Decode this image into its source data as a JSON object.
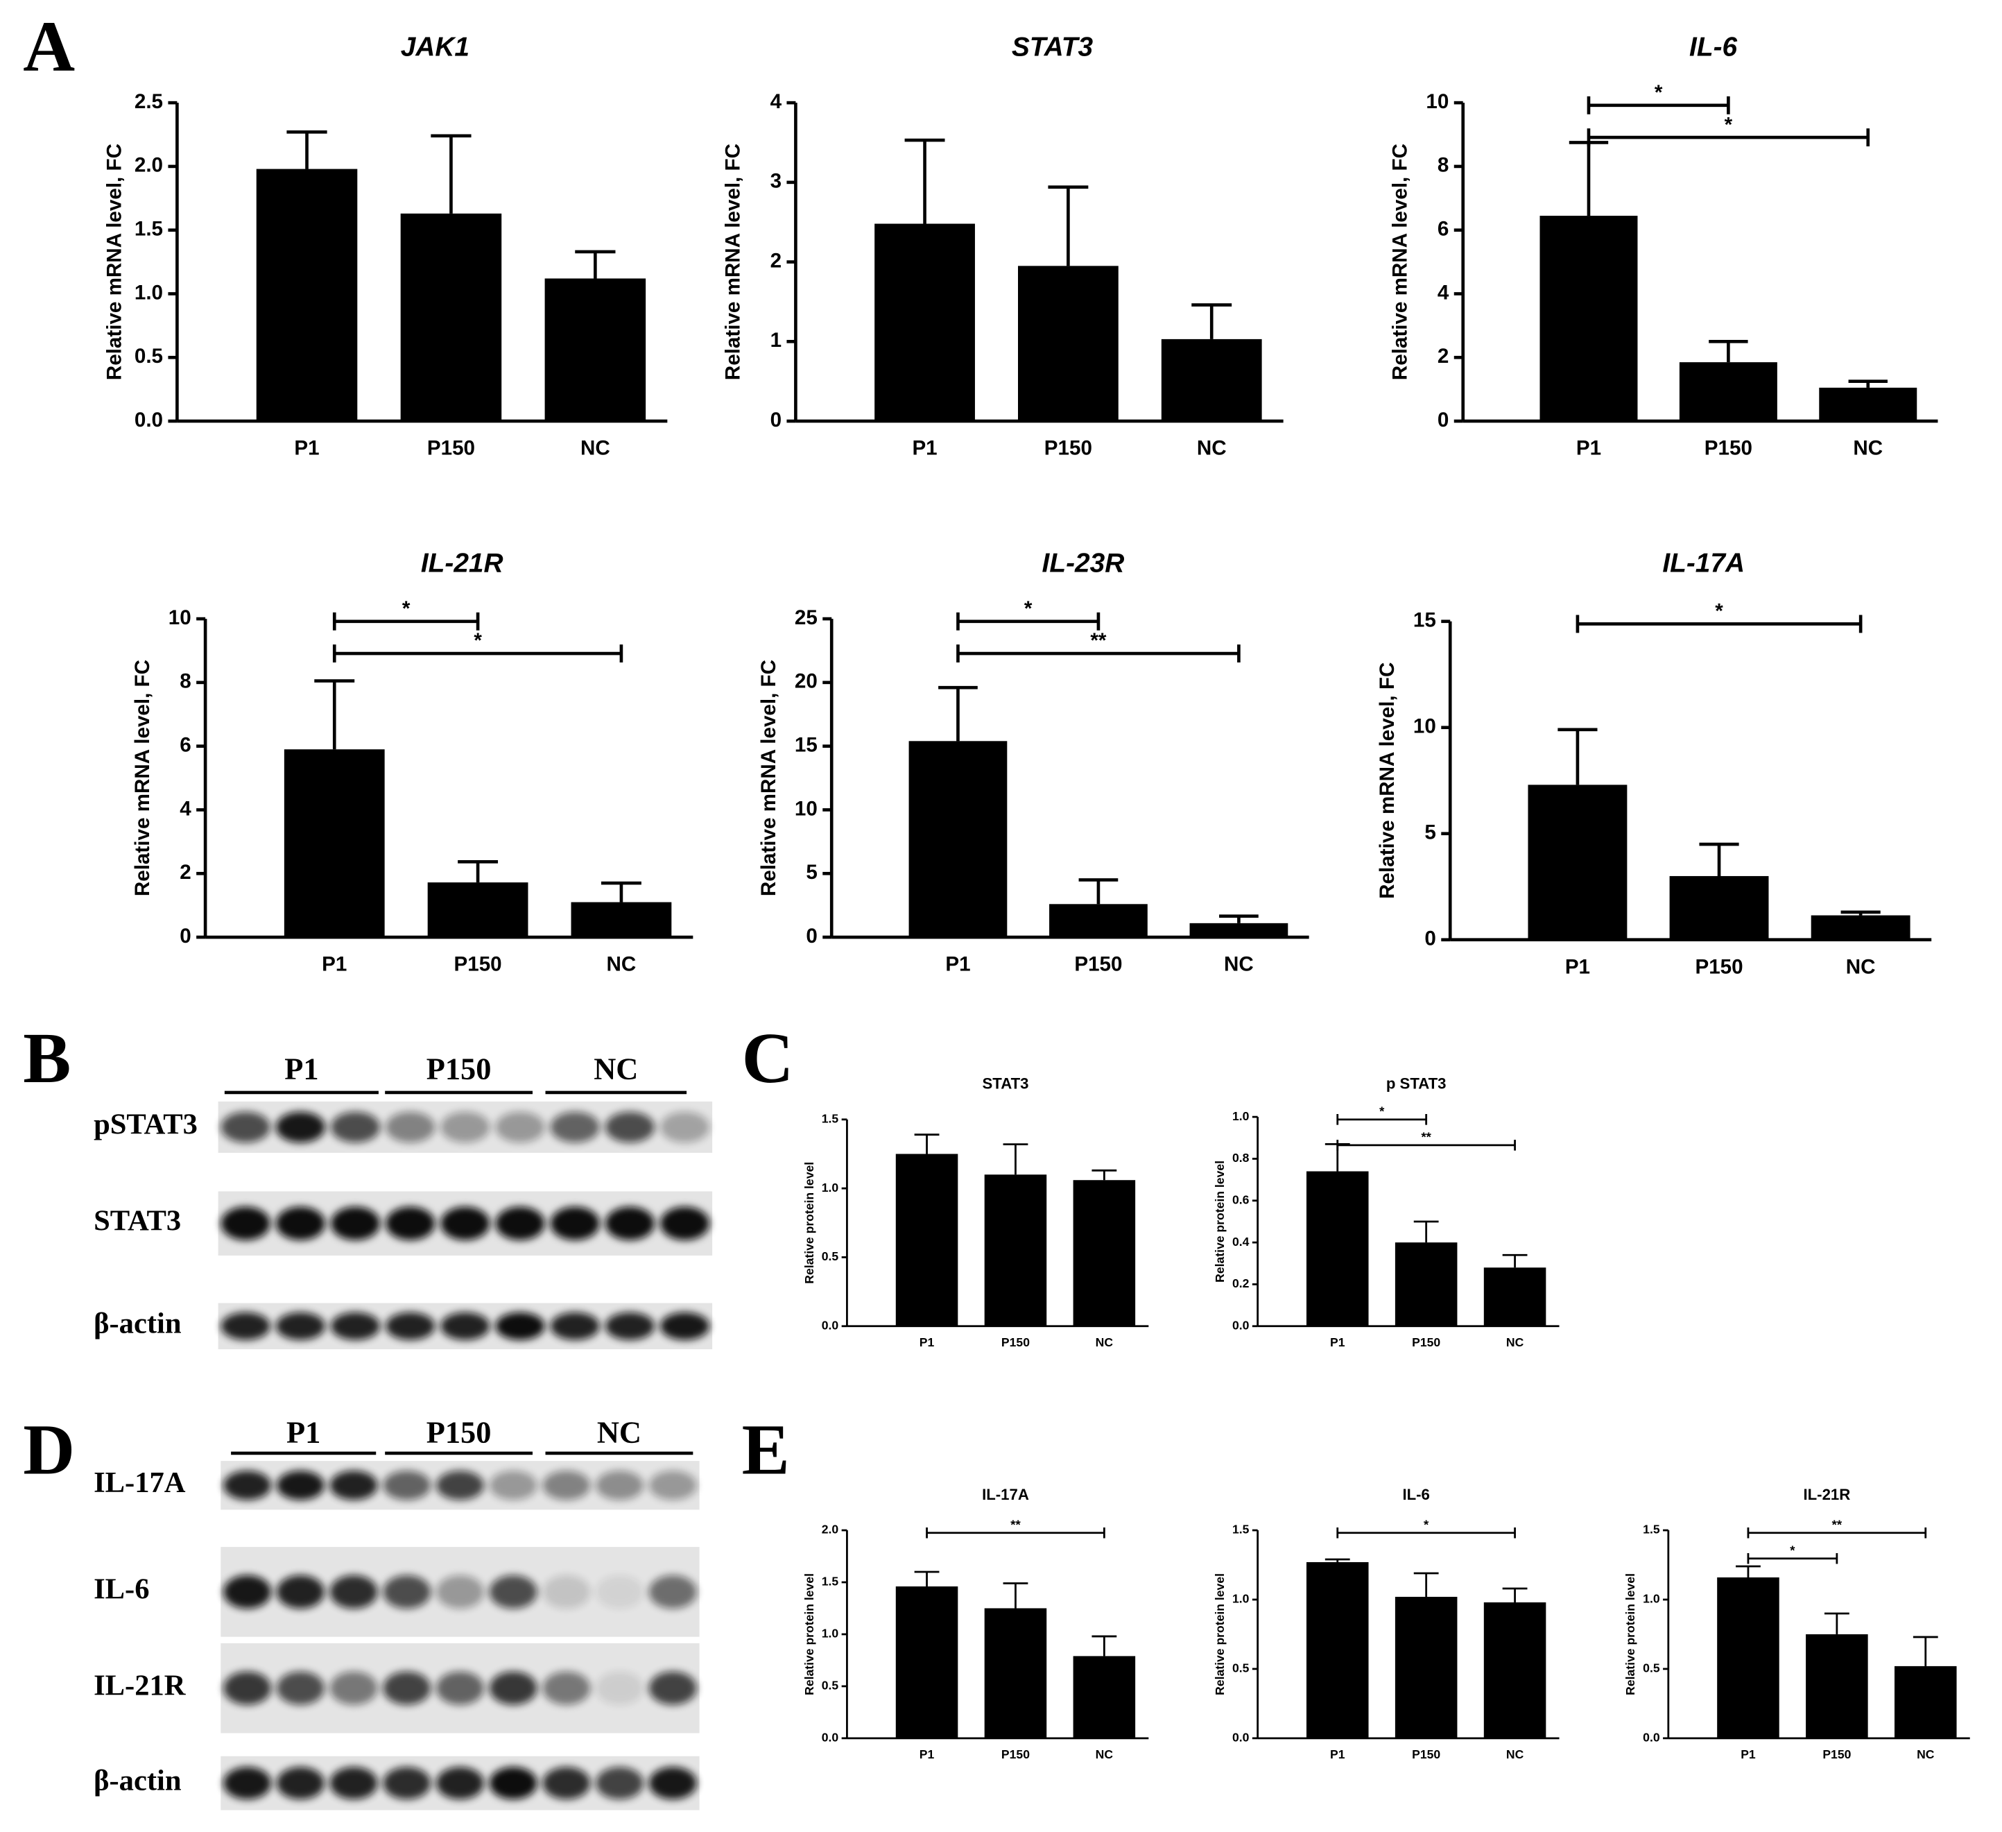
{
  "panel_labels": [
    "A",
    "B",
    "C",
    "D",
    "E"
  ],
  "blots": [
    {
      "groups": [
        "P1",
        "P150",
        "NC"
      ],
      "rows": [
        "pSTAT3",
        "STAT3",
        "β-actin"
      ]
    },
    {
      "groups": [
        "P1",
        "P150",
        "NC"
      ],
      "rows": [
        "IL-17A",
        "IL-6",
        "IL-21R",
        "β-actin"
      ]
    }
  ],
  "chart_data": [
    {
      "type": "bar",
      "title": "JAK1",
      "y_label": "Relative mRNA level, FC",
      "categories": [
        "P1",
        "P150",
        "NC"
      ],
      "values": [
        1.98,
        1.63,
        1.12
      ],
      "errors": [
        0.29,
        0.61,
        0.21
      ],
      "color": "#000000",
      "ylim": [
        0,
        2.5
      ],
      "yticks": [
        {
          "value": 0,
          "label": "0.0"
        },
        0.5,
        {
          "value": 1,
          "label": "1.0"
        },
        1.5,
        {
          "value": 2,
          "label": "2.0"
        },
        2.5
      ],
      "brackets": []
    },
    {
      "type": "bar",
      "title": "STAT3",
      "y_label": "Relative mRNA level, FC",
      "categories": [
        "P1",
        "P150",
        "NC"
      ],
      "values": [
        2.48,
        1.95,
        1.03
      ],
      "errors": [
        1.05,
        0.99,
        0.43
      ],
      "color": "#000000",
      "ylim": [
        0,
        4
      ],
      "yticks": [
        0,
        1,
        2,
        3,
        4
      ],
      "brackets": []
    },
    {
      "type": "bar",
      "title": "IL-6",
      "y_label": "Relative mRNA level, FC",
      "categories": [
        "P1",
        "P150",
        "NC"
      ],
      "values": [
        6.45,
        1.85,
        1.05
      ],
      "errors": [
        2.3,
        0.65,
        0.2
      ],
      "color": "#000000",
      "ylim": [
        0,
        10
      ],
      "yticks": [
        0,
        2,
        4,
        6,
        8,
        10
      ],
      "brackets": [
        {
          "from": "P1",
          "to": "P150",
          "label": "*"
        },
        {
          "from": "P1",
          "to": "NC",
          "label": "*"
        }
      ]
    },
    {
      "type": "bar",
      "title": "IL-21R",
      "y_label": "Relative mRNA level, FC",
      "categories": [
        "P1",
        "P150",
        "NC"
      ],
      "values": [
        5.9,
        1.72,
        1.1
      ],
      "errors": [
        2.15,
        0.65,
        0.6
      ],
      "color": "#000000",
      "ylim": [
        0,
        10
      ],
      "yticks": [
        0,
        2,
        4,
        6,
        8,
        10
      ],
      "brackets": [
        {
          "from": "P1",
          "to": "P150",
          "label": "*"
        },
        {
          "from": "P1",
          "to": "NC",
          "label": "*"
        }
      ]
    },
    {
      "type": "bar",
      "title": "IL-23R",
      "y_label": "Relative mRNA level, FC",
      "categories": [
        "P1",
        "P150",
        "NC"
      ],
      "values": [
        15.4,
        2.6,
        1.1
      ],
      "errors": [
        4.2,
        1.9,
        0.55
      ],
      "color": "#000000",
      "ylim": [
        0,
        25
      ],
      "yticks": [
        0,
        5,
        10,
        15,
        20,
        25
      ],
      "brackets": [
        {
          "from": "P1",
          "to": "P150",
          "label": "*"
        },
        {
          "from": "P1",
          "to": "NC",
          "label": "**"
        }
      ]
    },
    {
      "type": "bar",
      "title": "IL-17A",
      "y_label": "Relative mRNA level, FC",
      "categories": [
        "P1",
        "P150",
        "NC"
      ],
      "values": [
        7.3,
        3.0,
        1.15
      ],
      "errors": [
        2.6,
        1.5,
        0.15
      ],
      "color": "#000000",
      "ylim": [
        0,
        15
      ],
      "yticks": [
        0,
        5,
        10,
        15
      ],
      "brackets": [
        {
          "from": "P1",
          "to": "NC",
          "label": "*"
        }
      ]
    },
    {
      "type": "bar",
      "title": "STAT3",
      "y_label": "Relative protein level",
      "categories": [
        "P1",
        "P150",
        "NC"
      ],
      "values": [
        1.25,
        1.1,
        1.06
      ],
      "errors": [
        0.14,
        0.22,
        0.07
      ],
      "color": "#000000",
      "ylim": [
        0,
        1.5
      ],
      "yticks": [
        {
          "value": 0,
          "label": "0.0"
        },
        0.5,
        {
          "value": 1,
          "label": "1.0"
        },
        1.5
      ],
      "brackets": []
    },
    {
      "type": "bar",
      "title": "p STAT3",
      "y_label": "Relative protein level",
      "categories": [
        "P1",
        "P150",
        "NC"
      ],
      "values": [
        0.74,
        0.4,
        0.28
      ],
      "errors": [
        0.13,
        0.1,
        0.06
      ],
      "color": "#000000",
      "ylim": [
        0,
        1
      ],
      "yticks": [
        {
          "value": 0,
          "label": "0.0"
        },
        0.2,
        0.4,
        0.6,
        0.8,
        {
          "value": 1,
          "label": "1.0"
        }
      ],
      "brackets": [
        {
          "from": "P1",
          "to": "P150",
          "label": "*"
        },
        {
          "from": "P1",
          "to": "NC",
          "label": "**"
        }
      ]
    },
    {
      "type": "bar",
      "title": "IL-17A",
      "y_label": "Relative protein level",
      "categories": [
        "P1",
        "P150",
        "NC"
      ],
      "values": [
        1.46,
        1.25,
        0.79
      ],
      "errors": [
        0.14,
        0.24,
        0.19
      ],
      "color": "#000000",
      "ylim": [
        0,
        2
      ],
      "yticks": [
        {
          "value": 0,
          "label": "0.0"
        },
        0.5,
        {
          "value": 1,
          "label": "1.0"
        },
        1.5,
        {
          "value": 2,
          "label": "2.0"
        }
      ],
      "brackets": [
        {
          "from": "P1",
          "to": "NC",
          "label": "**"
        }
      ]
    },
    {
      "type": "bar",
      "title": "IL-6",
      "y_label": "Relative protein level",
      "categories": [
        "P1",
        "P150",
        "NC"
      ],
      "values": [
        1.27,
        1.02,
        0.98
      ],
      "errors": [
        0.02,
        0.17,
        0.1
      ],
      "color": "#000000",
      "ylim": [
        0,
        1.5
      ],
      "yticks": [
        {
          "value": 0,
          "label": "0.0"
        },
        0.5,
        {
          "value": 1,
          "label": "1.0"
        },
        1.5
      ],
      "brackets": [
        {
          "from": "P1",
          "to": "NC",
          "label": "*"
        }
      ]
    },
    {
      "type": "bar",
      "title": "IL-21R",
      "y_label": "Relative protein level",
      "categories": [
        "P1",
        "P150",
        "NC"
      ],
      "values": [
        1.16,
        0.75,
        0.52
      ],
      "errors": [
        0.08,
        0.15,
        0.21
      ],
      "color": "#000000",
      "ylim": [
        0,
        1.5
      ],
      "yticks": [
        {
          "value": 0,
          "label": "0.0"
        },
        0.5,
        {
          "value": 1,
          "label": "1.0"
        },
        1.5
      ],
      "brackets": [
        {
          "from": "P1",
          "to": "NC",
          "label": "**"
        },
        {
          "from": "P1",
          "to": "P150",
          "label": "*"
        }
      ]
    }
  ]
}
